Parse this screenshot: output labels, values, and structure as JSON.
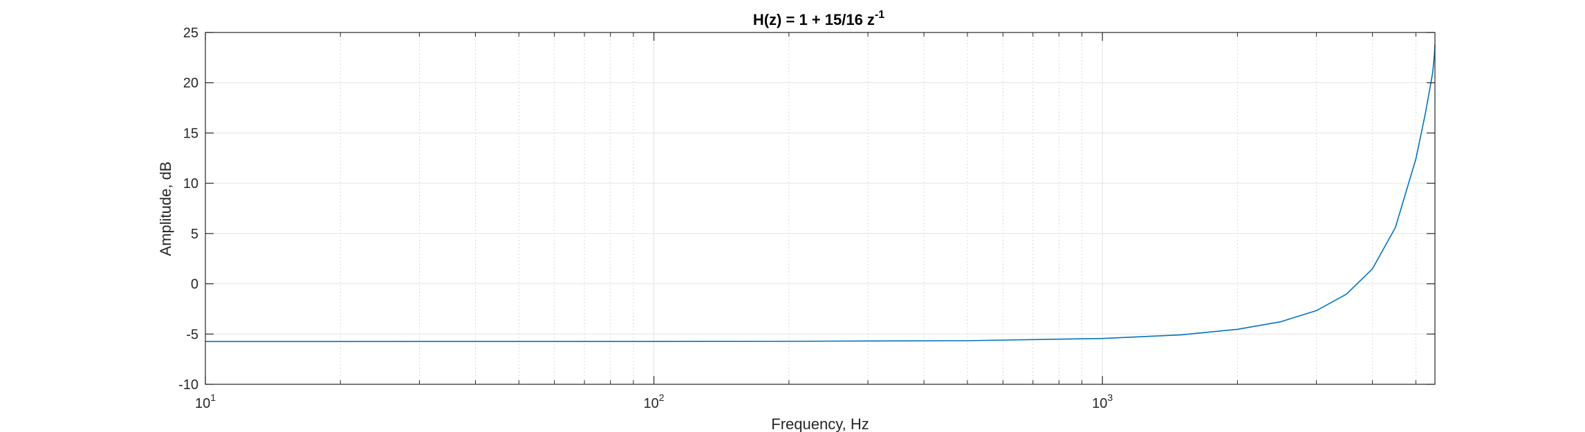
{
  "chart_data": {
    "type": "line",
    "title": "H(z) = 1 + 15/16 z",
    "title_superscript": "-1",
    "xlabel": "Frequency, Hz",
    "ylabel": "Amplitude, dB",
    "x_scale": "log",
    "xlim": [
      10,
      5512.5
    ],
    "ylim": [
      -10,
      25
    ],
    "x_ticks": [
      {
        "value": 10,
        "base": "10",
        "exp": "1"
      },
      {
        "value": 100,
        "base": "10",
        "exp": "2"
      },
      {
        "value": 1000,
        "base": "10",
        "exp": "3"
      }
    ],
    "y_ticks": [
      -10,
      -5,
      0,
      5,
      10,
      15,
      20,
      25
    ],
    "grid": true,
    "minor_grid": true,
    "line_color": "#0072BD",
    "series": [
      {
        "x": [
          10,
          20,
          50,
          100,
          200,
          500,
          1000,
          1500,
          2000,
          2500,
          3000,
          3500,
          4000,
          4500,
          5000,
          5250,
          5400,
          5450,
          5500,
          5512.5
        ],
        "y": [
          -5.74,
          -5.74,
          -5.73,
          -5.73,
          -5.72,
          -5.66,
          -5.44,
          -5.08,
          -4.53,
          -3.77,
          -2.67,
          -1.03,
          1.49,
          5.6,
          12.44,
          16.98,
          20.02,
          21.02,
          22.92,
          23.8
        ]
      }
    ]
  }
}
